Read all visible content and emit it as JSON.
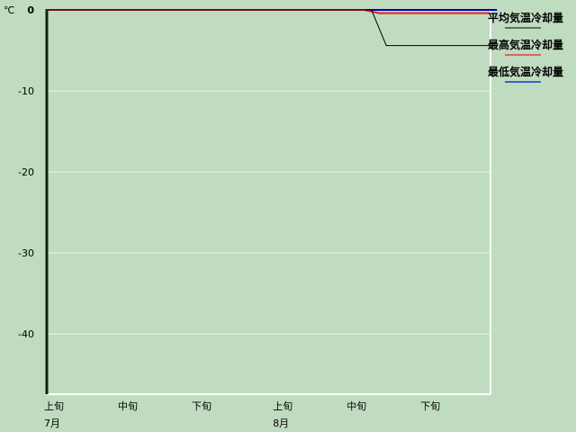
{
  "chart_data": {
    "type": "line",
    "title": "",
    "ylabel": "℃",
    "ylim": [
      -47.4,
      0
    ],
    "yticks": [
      0,
      -10,
      -20,
      -30,
      -40
    ],
    "ytick_labels": [
      "0",
      "-10",
      "-20",
      "-30",
      "-40"
    ],
    "xlim": [
      "7/1",
      "8/30"
    ],
    "xtick_labels": [
      "上旬",
      "中旬",
      "下旬",
      "上旬",
      "中旬",
      "下旬"
    ],
    "month_labels": [
      {
        "label": "7月",
        "at": "7/1"
      },
      {
        "label": "8月",
        "at": "8/1"
      }
    ],
    "grid": true,
    "legend_placement": "right",
    "series": [
      {
        "name": "平均気温冷却量",
        "color": "#000000",
        "legend_color": "#607060",
        "points": [
          [
            "7/1",
            0
          ],
          [
            "8/14",
            0
          ],
          [
            "8/16",
            -4.4
          ],
          [
            "8/30",
            -4.4
          ]
        ]
      },
      {
        "name": "最高気温冷却量",
        "color": "#e02020",
        "legend_color": "#e06060",
        "points": [
          [
            "7/1",
            0
          ],
          [
            "8/13",
            0
          ],
          [
            "8/15",
            -0.4
          ],
          [
            "8/30",
            -0.4
          ]
        ]
      },
      {
        "name": "最低気温冷却量",
        "color": "#0000c0",
        "legend_color": "#4060d0",
        "points": [
          [
            "7/1",
            0
          ],
          [
            "8/30",
            0
          ],
          [
            "8/31",
            0
          ]
        ]
      }
    ]
  }
}
